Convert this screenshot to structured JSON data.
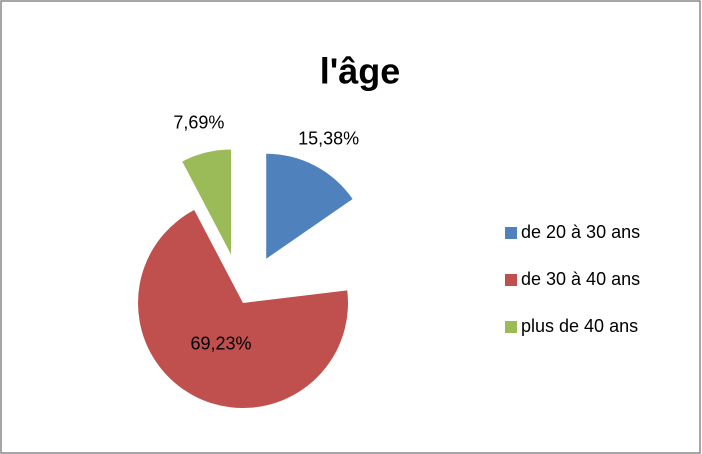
{
  "chart_data": {
    "type": "pie",
    "title": "l'âge",
    "categories": [
      "de 20 à 30 ans",
      "de 30 à 40 ans",
      "plus de 40 ans"
    ],
    "values": [
      15.38,
      69.23,
      7.69
    ],
    "value_labels": [
      "15,38%",
      "69,23%",
      "7,69%"
    ],
    "colors": [
      "#4f81bd",
      "#c0504d",
      "#9bbb59"
    ],
    "legend": "right"
  }
}
